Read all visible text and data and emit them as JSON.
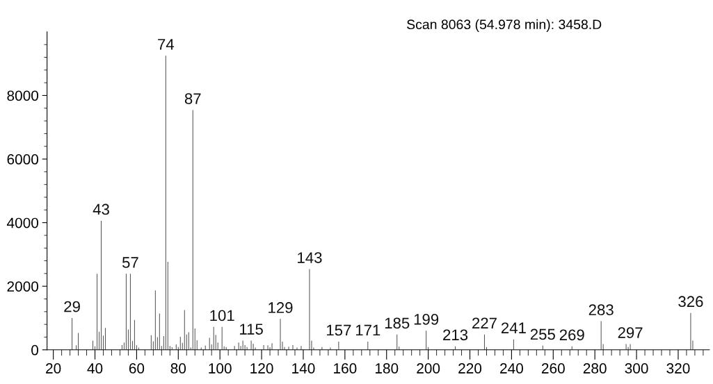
{
  "chart_data": {
    "type": "bar",
    "title": "Scan 8063 (54.978 min): 3458.D",
    "x": [
      29,
      31,
      32,
      39,
      40,
      41,
      42,
      43,
      44,
      45,
      53,
      54,
      55,
      56,
      57,
      58,
      59,
      60,
      61,
      67,
      68,
      69,
      70,
      71,
      72,
      73,
      74,
      75,
      76,
      77,
      79,
      80,
      81,
      82,
      83,
      84,
      85,
      86,
      87,
      88,
      89,
      91,
      93,
      95,
      96,
      97,
      98,
      99,
      101,
      102,
      103,
      107,
      109,
      110,
      111,
      112,
      113,
      115,
      116,
      117,
      121,
      123,
      124,
      125,
      129,
      130,
      131,
      133,
      135,
      137,
      139,
      143,
      144,
      145,
      149,
      153,
      157,
      171,
      185,
      186,
      199,
      200,
      213,
      227,
      228,
      241,
      255,
      269,
      283,
      284,
      295,
      296,
      297,
      326,
      327
    ],
    "values": [
      1000,
      140,
      530,
      290,
      110,
      2390,
      570,
      4060,
      450,
      690,
      150,
      230,
      2390,
      640,
      2390,
      280,
      940,
      140,
      70,
      460,
      270,
      1870,
      400,
      1140,
      120,
      430,
      9250,
      2770,
      120,
      80,
      170,
      90,
      410,
      220,
      1250,
      480,
      550,
      70,
      7540,
      670,
      300,
      70,
      130,
      380,
      170,
      720,
      470,
      230,
      720,
      110,
      90,
      120,
      230,
      120,
      290,
      150,
      90,
      290,
      190,
      70,
      150,
      140,
      80,
      210,
      970,
      260,
      90,
      100,
      150,
      70,
      120,
      2540,
      290,
      70,
      90,
      70,
      260,
      260,
      480,
      100,
      600,
      90,
      110,
      480,
      90,
      330,
      130,
      110,
      900,
      180,
      180,
      90,
      180,
      1160,
      290
    ],
    "annotations": [
      {
        "text": "29",
        "x": 29,
        "y": 1000
      },
      {
        "text": "43",
        "x": 43,
        "y": 4060
      },
      {
        "text": "57",
        "x": 57,
        "y": 2390
      },
      {
        "text": "74",
        "x": 74,
        "y": 9250
      },
      {
        "text": "87",
        "x": 87,
        "y": 7540
      },
      {
        "text": "101",
        "x": 101,
        "y": 720
      },
      {
        "text": "115",
        "x": 115,
        "y": 290
      },
      {
        "text": "129",
        "x": 129,
        "y": 970
      },
      {
        "text": "143",
        "x": 143,
        "y": 2540
      },
      {
        "text": "157",
        "x": 157,
        "y": 260
      },
      {
        "text": "171",
        "x": 171,
        "y": 260
      },
      {
        "text": "185",
        "x": 185,
        "y": 480
      },
      {
        "text": "199",
        "x": 199,
        "y": 600
      },
      {
        "text": "213",
        "x": 213,
        "y": 110
      },
      {
        "text": "227",
        "x": 227,
        "y": 480
      },
      {
        "text": "241",
        "x": 241,
        "y": 330
      },
      {
        "text": "255",
        "x": 255,
        "y": 130
      },
      {
        "text": "269",
        "x": 269,
        "y": 110
      },
      {
        "text": "283",
        "x": 283,
        "y": 900
      },
      {
        "text": "297",
        "x": 297,
        "y": 180
      },
      {
        "text": "326",
        "x": 326,
        "y": 1160
      }
    ],
    "color": "#555555",
    "xlim": [
      17,
      335
    ],
    "xticks": [
      20,
      {
        "value": 24,
        "label": null
      },
      {
        "value": 28,
        "label": null
      },
      {
        "value": 32,
        "label": null
      },
      {
        "value": 36,
        "label": null
      },
      40,
      {
        "value": 44,
        "label": null
      },
      {
        "value": 48,
        "label": null
      },
      {
        "value": 52,
        "label": null
      },
      {
        "value": 56,
        "label": null
      },
      60,
      {
        "value": 64,
        "label": null
      },
      {
        "value": 68,
        "label": null
      },
      {
        "value": 72,
        "label": null
      },
      {
        "value": 76,
        "label": null
      },
      80,
      {
        "value": 84,
        "label": null
      },
      {
        "value": 88,
        "label": null
      },
      {
        "value": 92,
        "label": null
      },
      {
        "value": 96,
        "label": null
      },
      100,
      {
        "value": 104,
        "label": null
      },
      {
        "value": 108,
        "label": null
      },
      {
        "value": 112,
        "label": null
      },
      {
        "value": 116,
        "label": null
      },
      120,
      {
        "value": 124,
        "label": null
      },
      {
        "value": 128,
        "label": null
      },
      {
        "value": 132,
        "label": null
      },
      {
        "value": 136,
        "label": null
      },
      140,
      {
        "value": 144,
        "label": null
      },
      {
        "value": 148,
        "label": null
      },
      {
        "value": 152,
        "label": null
      },
      {
        "value": 156,
        "label": null
      },
      160,
      {
        "value": 164,
        "label": null
      },
      {
        "value": 168,
        "label": null
      },
      {
        "value": 172,
        "label": null
      },
      {
        "value": 176,
        "label": null
      },
      180,
      {
        "value": 184,
        "label": null
      },
      {
        "value": 188,
        "label": null
      },
      {
        "value": 192,
        "label": null
      },
      {
        "value": 196,
        "label": null
      },
      200,
      {
        "value": 204,
        "label": null
      },
      {
        "value": 208,
        "label": null
      },
      {
        "value": 212,
        "label": null
      },
      {
        "value": 216,
        "label": null
      },
      220,
      {
        "value": 224,
        "label": null
      },
      {
        "value": 228,
        "label": null
      },
      {
        "value": 232,
        "label": null
      },
      {
        "value": 236,
        "label": null
      },
      240,
      {
        "value": 244,
        "label": null
      },
      {
        "value": 248,
        "label": null
      },
      {
        "value": 252,
        "label": null
      },
      {
        "value": 256,
        "label": null
      },
      260,
      {
        "value": 264,
        "label": null
      },
      {
        "value": 268,
        "label": null
      },
      {
        "value": 272,
        "label": null
      },
      {
        "value": 276,
        "label": null
      },
      280,
      {
        "value": 284,
        "label": null
      },
      {
        "value": 288,
        "label": null
      },
      {
        "value": 292,
        "label": null
      },
      {
        "value": 296,
        "label": null
      },
      300,
      {
        "value": 304,
        "label": null
      },
      {
        "value": 308,
        "label": null
      },
      {
        "value": 312,
        "label": null
      },
      {
        "value": 316,
        "label": null
      },
      320,
      {
        "value": 324,
        "label": null
      },
      {
        "value": 328,
        "label": null
      },
      {
        "value": 332,
        "label": null
      }
    ],
    "ylim": [
      0,
      10000
    ],
    "yticks": [
      0,
      {
        "value": 400,
        "label": null
      },
      {
        "value": 800,
        "label": null
      },
      {
        "value": 1200,
        "label": null
      },
      {
        "value": 1600,
        "label": null
      },
      2000,
      {
        "value": 2400,
        "label": null
      },
      {
        "value": 2800,
        "label": null
      },
      {
        "value": 3200,
        "label": null
      },
      {
        "value": 3600,
        "label": null
      },
      4000,
      {
        "value": 4400,
        "label": null
      },
      {
        "value": 4800,
        "label": null
      },
      {
        "value": 5200,
        "label": null
      },
      {
        "value": 5600,
        "label": null
      },
      6000,
      {
        "value": 6400,
        "label": null
      },
      {
        "value": 6800,
        "label": null
      },
      {
        "value": 7200,
        "label": null
      },
      {
        "value": 7600,
        "label": null
      },
      8000,
      {
        "value": 8400,
        "label": null
      },
      {
        "value": 8800,
        "label": null
      },
      {
        "value": 9200,
        "label": null
      },
      {
        "value": 9600,
        "label": null
      }
    ],
    "grid": false
  }
}
